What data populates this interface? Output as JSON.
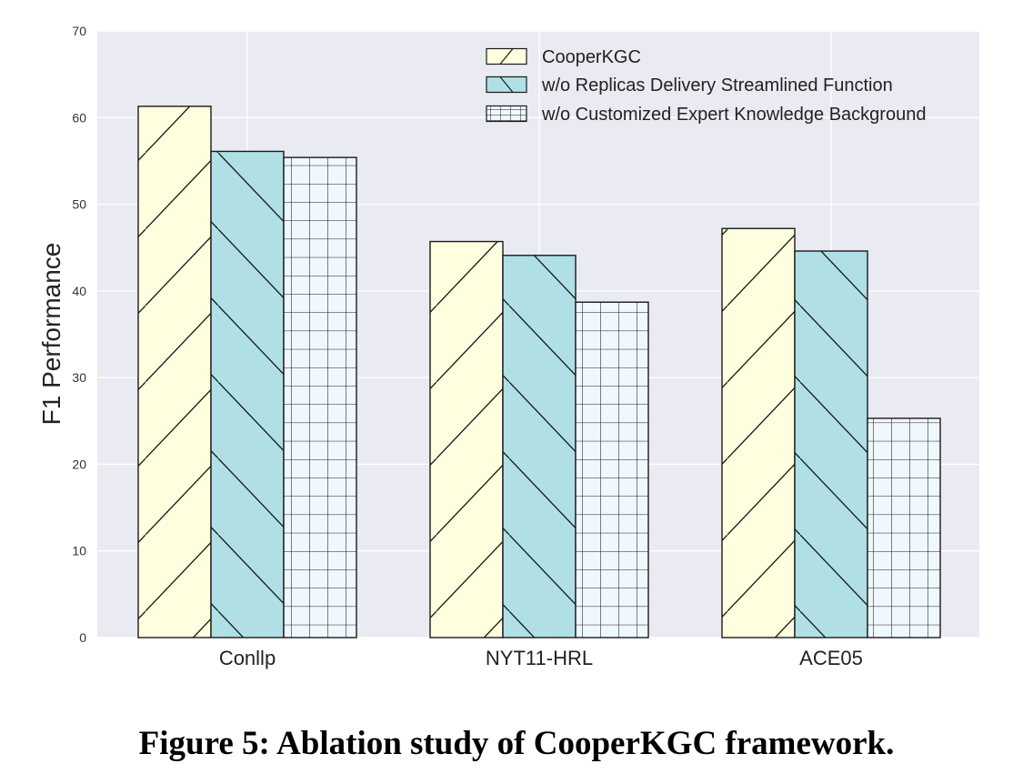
{
  "caption": "Figure 5: Ablation study of CooperKGC framework.",
  "chart_data": {
    "type": "bar",
    "title": "",
    "xlabel": "",
    "ylabel": "F1 Performance",
    "ylim": [
      0,
      70
    ],
    "yticks": [
      0,
      10,
      20,
      30,
      40,
      50,
      60,
      70
    ],
    "grid": true,
    "legend_position": "top-right",
    "categories": [
      "Conllp",
      "NYT11-HRL",
      "ACE05"
    ],
    "series": [
      {
        "name": "CooperKGC",
        "values": [
          61.3,
          45.7,
          47.2
        ],
        "color": "#ffffe0",
        "hatch": "diagonal-forward"
      },
      {
        "name": "w/o Replicas Delivery Streamlined Function",
        "values": [
          56.1,
          44.1,
          44.6
        ],
        "color": "#b0e0e6",
        "hatch": "diagonal-back"
      },
      {
        "name": "w/o Customized Expert Knowledge Background",
        "values": [
          55.4,
          38.7,
          25.3
        ],
        "color": "#f0f8ff",
        "hatch": "grid"
      }
    ],
    "plot_background": "#eaeaf2",
    "grid_color": "#ffffff",
    "edge_color": "#1a1a1a"
  }
}
